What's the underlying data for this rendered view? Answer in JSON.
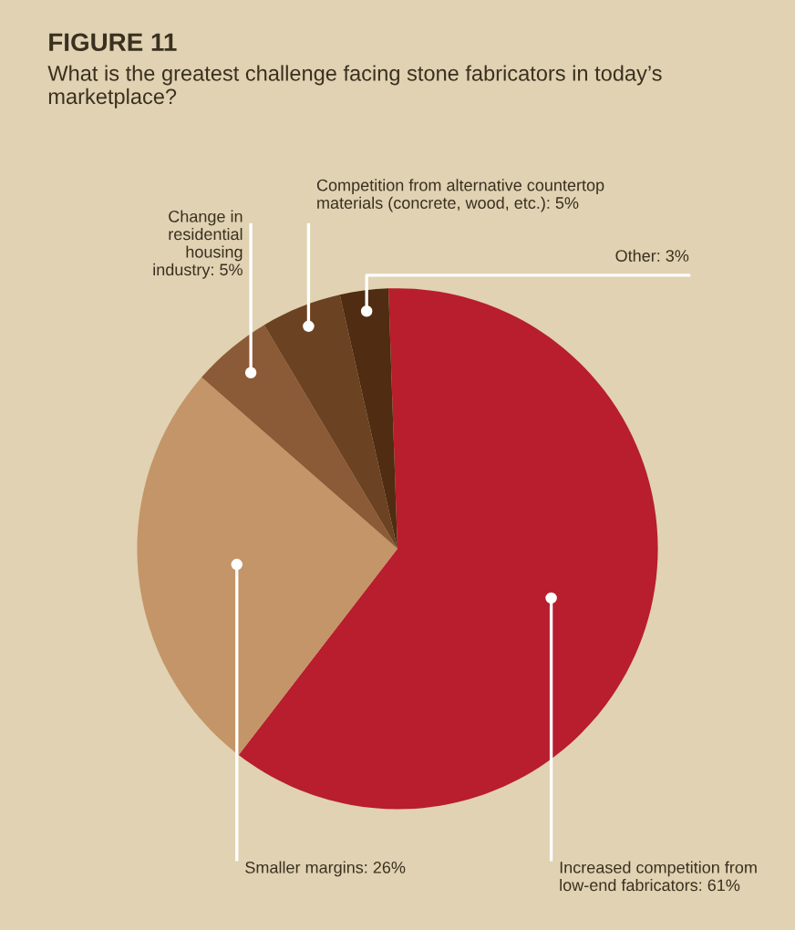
{
  "chart_data": {
    "type": "pie",
    "title": "FIGURE 11",
    "subtitle": "What is the greatest challenge facing stone fabricators in today’s marketplace?",
    "categories": [
      "Increased competition from\nlow-end fabricators: 61%",
      "Smaller margins: 26%",
      "Change in\nresidential\nhousing\nindustry: 5%",
      "Competition from alternative countertop\nmaterials (concrete, wood, etc.): 5%",
      "Other: 3%"
    ],
    "values": [
      61,
      26,
      5,
      5,
      3
    ],
    "colors": [
      "#b81e2d",
      "#c39568",
      "#8b5a36",
      "#6b4222",
      "#4f2c12"
    ]
  }
}
